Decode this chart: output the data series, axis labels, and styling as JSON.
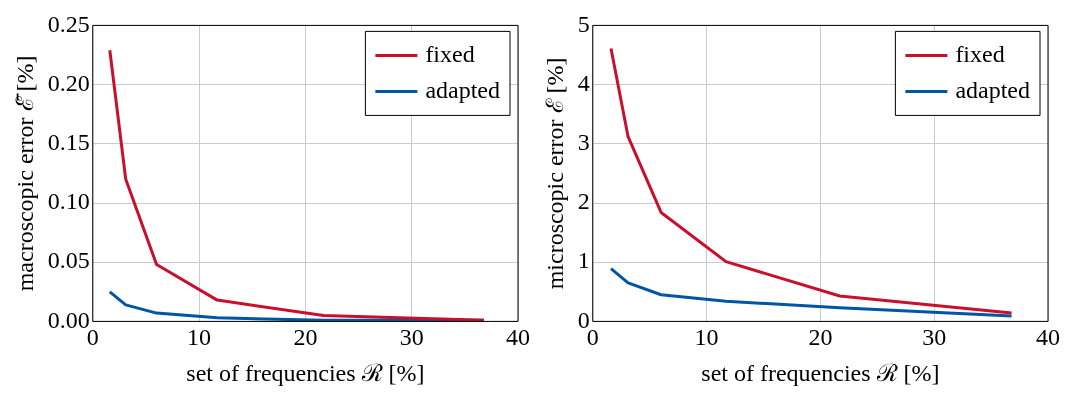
{
  "chart_data": [
    {
      "type": "line",
      "xlabel": "set of frequencies ℛ [%]",
      "ylabel": "macroscopic error ℰ̄ [%]",
      "x": [
        1.6,
        3.1,
        6.0,
        11.7,
        21.7,
        36.8
      ],
      "series": [
        {
          "name": "fixed",
          "color": "#c8102e",
          "values": [
            0.229,
            0.12,
            0.048,
            0.018,
            0.005,
            0.001
          ]
        },
        {
          "name": "adapted",
          "color": "#0055a5",
          "values": [
            0.025,
            0.014,
            0.007,
            0.003,
            0.001,
            0.001
          ]
        }
      ],
      "xlim": [
        0,
        40
      ],
      "xticks": [
        0,
        10,
        20,
        30,
        40
      ],
      "ylim": [
        0,
        0.25
      ],
      "yticks": [
        {
          "value": 0,
          "label": "0.00"
        },
        {
          "value": 0.05,
          "label": "0.05"
        },
        {
          "value": 0.1,
          "label": "0.10"
        },
        {
          "value": 0.15,
          "label": "0.15"
        },
        {
          "value": 0.2,
          "label": "0.20"
        },
        {
          "value": 0.25,
          "label": "0.25"
        }
      ],
      "grid": true,
      "legend": "top right",
      "marker": "none",
      "line_style": "solid"
    },
    {
      "type": "line",
      "xlabel": "set of frequencies ℛ [%]",
      "ylabel": "microscopic error ℰ [%]",
      "x": [
        1.6,
        3.1,
        6.0,
        11.7,
        21.7,
        36.8
      ],
      "series": [
        {
          "name": "fixed",
          "color": "#c8102e",
          "values": [
            4.61,
            3.12,
            1.84,
            1.01,
            0.43,
            0.14
          ]
        },
        {
          "name": "adapted",
          "color": "#0055a5",
          "values": [
            0.89,
            0.65,
            0.45,
            0.34,
            0.23,
            0.09
          ]
        }
      ],
      "xlim": [
        0,
        40
      ],
      "xticks": [
        0,
        10,
        20,
        30,
        40
      ],
      "ylim": [
        0,
        5
      ],
      "yticks": [
        0,
        1,
        2,
        3,
        4,
        5
      ],
      "grid": true,
      "legend": "top right",
      "marker": "none",
      "line_style": "solid"
    }
  ]
}
